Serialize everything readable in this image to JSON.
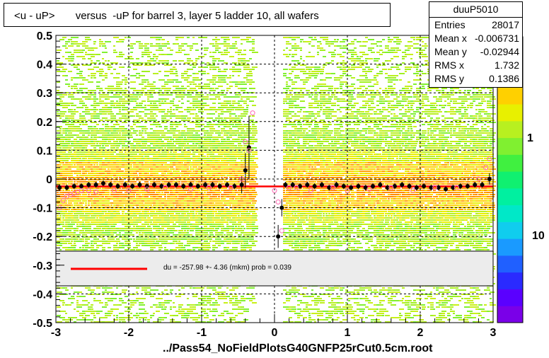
{
  "title": "<u - uP>       versus  -uP for barrel 3, layer 5 ladder 10, all wafers",
  "footer": "../Pass54_NoFieldPlotsG40GNFP25rCut0.5cm.root",
  "stats": {
    "name": "duuP5010",
    "rows": [
      {
        "label": "Entries",
        "value": "28017"
      },
      {
        "label": "Mean x",
        "value": "-0.006731"
      },
      {
        "label": "Mean y",
        "value": "-0.02944"
      },
      {
        "label": "RMS x",
        "value": "1.732"
      },
      {
        "label": "RMS y",
        "value": "0.1386"
      }
    ]
  },
  "colorbar_labels": [
    "1",
    "10"
  ],
  "legend": {
    "text": "du = -257.98 +-  4.36 (mkm) prob = 0.039",
    "line_color": "#ff0000"
  },
  "colors": {
    "fit_line": "#ff0000",
    "profile_points": "#000000",
    "open_points": "#ff69b4"
  },
  "chart_data": {
    "type": "scatter",
    "xlim": [
      -3,
      3
    ],
    "ylim": [
      -0.5,
      0.5
    ],
    "xticks": [
      -3,
      -2,
      -1,
      0,
      1,
      2,
      3
    ],
    "yticks": [
      -0.5,
      -0.4,
      -0.3,
      -0.2,
      -0.1,
      0,
      0.1,
      0.2,
      0.3,
      0.4,
      0.5
    ],
    "xtick_labels": [
      "-3",
      "-2",
      "-1",
      "0",
      "1",
      "2",
      "3"
    ],
    "ytick_labels": [
      "-0.5",
      "-0.4",
      "-0.3",
      "-0.2",
      "-0.1",
      "0",
      "0.1",
      "0.2",
      "0.3",
      "0.4",
      "0.5"
    ],
    "grid": true,
    "fit": {
      "x": [
        -3,
        3
      ],
      "y": [
        -0.026,
        -0.026
      ]
    },
    "profile": {
      "x": [
        -2.95,
        -2.85,
        -2.75,
        -2.65,
        -2.55,
        -2.45,
        -2.35,
        -2.25,
        -2.15,
        -2.05,
        -1.95,
        -1.85,
        -1.75,
        -1.65,
        -1.55,
        -1.45,
        -1.35,
        -1.25,
        -1.15,
        -1.05,
        -0.95,
        -0.85,
        -0.75,
        -0.65,
        -0.55,
        -0.45,
        -0.4,
        -0.35,
        0.05,
        0.1,
        0.15,
        0.25,
        0.35,
        0.45,
        0.55,
        0.65,
        0.75,
        0.85,
        0.95,
        1.05,
        1.15,
        1.25,
        1.35,
        1.45,
        1.55,
        1.65,
        1.75,
        1.85,
        1.95,
        2.05,
        2.15,
        2.25,
        2.35,
        2.45,
        2.55,
        2.65,
        2.75,
        2.85,
        2.95
      ],
      "y": [
        -0.03,
        -0.03,
        -0.025,
        -0.025,
        -0.02,
        -0.02,
        -0.015,
        -0.02,
        -0.025,
        -0.02,
        -0.025,
        -0.02,
        -0.025,
        -0.02,
        -0.025,
        -0.02,
        -0.02,
        -0.025,
        -0.02,
        -0.025,
        -0.02,
        -0.02,
        -0.025,
        -0.02,
        -0.025,
        -0.02,
        0.03,
        0.11,
        -0.2,
        -0.1,
        -0.02,
        -0.02,
        -0.025,
        -0.02,
        -0.025,
        -0.02,
        -0.03,
        -0.02,
        -0.025,
        -0.03,
        -0.025,
        -0.03,
        -0.025,
        -0.02,
        -0.03,
        -0.025,
        -0.02,
        -0.025,
        -0.03,
        -0.025,
        -0.03,
        -0.03,
        -0.035,
        -0.03,
        -0.025,
        -0.025,
        -0.02,
        -0.02,
        0.0
      ],
      "yerr": [
        0.01,
        0.01,
        0.01,
        0.01,
        0.01,
        0.01,
        0.01,
        0.01,
        0.01,
        0.01,
        0.01,
        0.01,
        0.01,
        0.01,
        0.01,
        0.01,
        0.01,
        0.01,
        0.01,
        0.01,
        0.01,
        0.01,
        0.01,
        0.01,
        0.01,
        0.03,
        0.06,
        0.11,
        0.04,
        0.03,
        0.01,
        0.01,
        0.01,
        0.01,
        0.01,
        0.01,
        0.01,
        0.01,
        0.01,
        0.01,
        0.01,
        0.01,
        0.01,
        0.01,
        0.01,
        0.01,
        0.01,
        0.01,
        0.01,
        0.01,
        0.01,
        0.01,
        0.01,
        0.01,
        0.01,
        0.01,
        0.01,
        0.01,
        0.02
      ]
    },
    "open_points": {
      "x": [
        -2.95,
        -2.9,
        -2.85,
        -2.8,
        -2.75,
        -2.7,
        -2.65,
        -2.55,
        -2.45,
        -2.2,
        -2.0,
        -1.75,
        -1.5,
        -1.15,
        -0.9,
        -0.6,
        -0.45,
        -0.4,
        -0.35,
        -0.3,
        0.0,
        0.05,
        0.1,
        0.2,
        0.3,
        0.5,
        0.8,
        1.0,
        1.3,
        1.6,
        1.9,
        2.2,
        2.5,
        2.8,
        2.9,
        2.95
      ],
      "y": [
        -0.1,
        -0.075,
        -0.06,
        -0.055,
        -0.05,
        -0.045,
        -0.04,
        -0.04,
        -0.045,
        -0.04,
        -0.04,
        -0.035,
        -0.03,
        -0.035,
        -0.03,
        -0.03,
        0.0,
        0.13,
        0.1,
        0.23,
        -0.04,
        -0.08,
        -0.18,
        -0.03,
        -0.03,
        -0.04,
        -0.03,
        -0.04,
        -0.035,
        -0.03,
        -0.04,
        -0.03,
        -0.03,
        0.0,
        0.04,
        0.07
      ]
    },
    "colorscale": [
      "#7a00e8",
      "#5a00ff",
      "#2a2aff",
      "#2060ff",
      "#1a9aff",
      "#10cdee",
      "#00e8c8",
      "#00f0a0",
      "#10f070",
      "#40f040",
      "#80f030",
      "#b8f020",
      "#e8f000",
      "#ffd000",
      "#ffa000",
      "#ff6a00",
      "#ff2a00"
    ]
  }
}
